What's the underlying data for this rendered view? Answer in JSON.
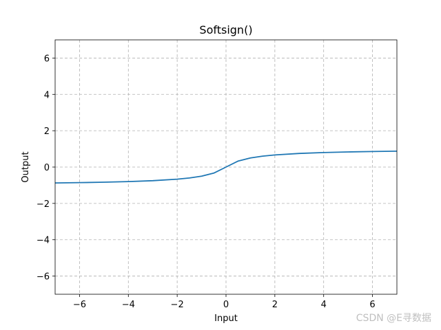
{
  "chart_data": {
    "type": "line",
    "title": "Softsign()",
    "xlabel": "Input",
    "ylabel": "Output",
    "xlim": [
      -7,
      7
    ],
    "ylim": [
      -7,
      7
    ],
    "x_ticks": [
      -6,
      -4,
      -2,
      0,
      2,
      4,
      6
    ],
    "y_ticks": [
      -6,
      -4,
      -2,
      0,
      2,
      4,
      6
    ],
    "x_tick_labels": [
      "−6",
      "−4",
      "−2",
      "0",
      "2",
      "4",
      "6"
    ],
    "y_tick_labels": [
      "−6",
      "−4",
      "−2",
      "0",
      "2",
      "4",
      "6"
    ],
    "grid": true,
    "series": [
      {
        "color": "#1f77b4",
        "x": [
          -7,
          -6,
          -5,
          -4,
          -3,
          -2,
          -1.5,
          -1,
          -0.5,
          0,
          0.5,
          1,
          1.5,
          2,
          3,
          4,
          5,
          6,
          7
        ],
        "y": [
          -0.875,
          -0.857,
          -0.833,
          -0.8,
          -0.75,
          -0.667,
          -0.6,
          -0.5,
          -0.333,
          0,
          0.333,
          0.5,
          0.6,
          0.667,
          0.75,
          0.8,
          0.833,
          0.857,
          0.875
        ]
      }
    ]
  },
  "watermark": "CSDN @E寻数据"
}
